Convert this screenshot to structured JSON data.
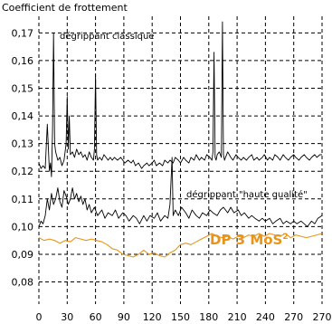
{
  "chart_data": {
    "type": "line",
    "ylabel": "Coefficient de frottement",
    "xlabel": "",
    "xlim": [
      0,
      270
    ],
    "ylim": [
      0.072,
      0.176
    ],
    "grid": true,
    "x_ticks": [
      "0",
      "30",
      "60",
      "90",
      "120",
      "150",
      "180",
      "210",
      "240",
      "270",
      "270"
    ],
    "y_ticks": [
      "0,08",
      "0,09",
      "0,10",
      "0,11",
      "0,12",
      "0,13",
      "0,14",
      "0,15",
      "0,16",
      "0,17"
    ],
    "series": [
      {
        "name": "dégrippant classique",
        "color": "#000000",
        "x": [
          0,
          2,
          4,
          6,
          8,
          10,
          11,
          12,
          13,
          14,
          15,
          16,
          18,
          20,
          22,
          24,
          26,
          27,
          28,
          29,
          30,
          32,
          34,
          36,
          38,
          40,
          42,
          44,
          46,
          48,
          50,
          52,
          53,
          54,
          55,
          56,
          58,
          60,
          62,
          64,
          66,
          68,
          70,
          72,
          75,
          78,
          80,
          82,
          85,
          88,
          90,
          92,
          95,
          98,
          100,
          103,
          105,
          108,
          110,
          112,
          115,
          118,
          120,
          123,
          125,
          128,
          130,
          133,
          135,
          138,
          140,
          143,
          145,
          148,
          150,
          153,
          155,
          158,
          160,
          163,
          165,
          166,
          167,
          168,
          169,
          170,
          172,
          174,
          175,
          176,
          177,
          178,
          180,
          183,
          185,
          188,
          190,
          193,
          195,
          198,
          200,
          203,
          205,
          208,
          210,
          213,
          215,
          218,
          220,
          223,
          225,
          228,
          230,
          233,
          235,
          238,
          240,
          243,
          245,
          248,
          250,
          253,
          255,
          258,
          260,
          263,
          265,
          268,
          270
        ],
        "y": [
          0.123,
          0.121,
          0.122,
          0.121,
          0.137,
          0.12,
          0.123,
          0.118,
          0.135,
          0.17,
          0.13,
          0.127,
          0.124,
          0.125,
          0.122,
          0.124,
          0.13,
          0.147,
          0.128,
          0.14,
          0.126,
          0.127,
          0.125,
          0.128,
          0.126,
          0.127,
          0.125,
          0.126,
          0.124,
          0.127,
          0.125,
          0.124,
          0.128,
          0.155,
          0.126,
          0.124,
          0.125,
          0.124,
          0.126,
          0.125,
          0.124,
          0.125,
          0.124,
          0.125,
          0.124,
          0.125,
          0.124,
          0.123,
          0.124,
          0.123,
          0.124,
          0.122,
          0.123,
          0.121,
          0.122,
          0.123,
          0.122,
          0.123,
          0.124,
          0.122,
          0.123,
          0.122,
          0.124,
          0.123,
          0.124,
          0.123,
          0.125,
          0.124,
          0.123,
          0.125,
          0.124,
          0.123,
          0.125,
          0.124,
          0.126,
          0.124,
          0.125,
          0.124,
          0.126,
          0.125,
          0.124,
          0.127,
          0.163,
          0.125,
          0.124,
          0.126,
          0.127,
          0.125,
          0.174,
          0.126,
          0.124,
          0.125,
          0.127,
          0.125,
          0.124,
          0.126,
          0.125,
          0.124,
          0.125,
          0.124,
          0.125,
          0.126,
          0.124,
          0.125,
          0.124,
          0.125,
          0.126,
          0.124,
          0.125,
          0.124,
          0.126,
          0.125,
          0.124,
          0.126,
          0.125,
          0.124,
          0.125,
          0.126,
          0.125,
          0.124,
          0.125,
          0.126,
          0.125,
          0.124,
          0.125,
          0.126,
          0.125,
          0.126,
          0.126
        ]
      },
      {
        "name": "dégrippant \"haute qualité\"",
        "color": "#000000",
        "x": [
          0,
          2,
          4,
          6,
          8,
          10,
          12,
          14,
          16,
          18,
          20,
          22,
          24,
          26,
          28,
          30,
          32,
          34,
          36,
          38,
          40,
          42,
          44,
          46,
          48,
          50,
          53,
          56,
          60,
          63,
          66,
          70,
          73,
          76,
          80,
          83,
          86,
          90,
          93,
          96,
          100,
          103,
          106,
          110,
          113,
          116,
          120,
          123,
          125,
          127,
          128,
          130,
          133,
          136,
          140,
          143,
          146,
          150,
          153,
          156,
          160,
          163,
          166,
          170,
          173,
          176,
          180,
          183,
          186,
          190,
          193,
          196,
          200,
          203,
          206,
          210,
          213,
          216,
          220,
          223,
          226,
          230,
          233,
          236,
          240,
          243,
          246,
          250,
          253,
          256,
          260,
          263,
          266,
          270
        ],
        "y": [
          0.1,
          0.102,
          0.101,
          0.104,
          0.11,
          0.106,
          0.112,
          0.108,
          0.11,
          0.114,
          0.109,
          0.107,
          0.113,
          0.111,
          0.108,
          0.11,
          0.114,
          0.11,
          0.112,
          0.109,
          0.111,
          0.108,
          0.11,
          0.106,
          0.108,
          0.105,
          0.107,
          0.104,
          0.106,
          0.103,
          0.105,
          0.104,
          0.106,
          0.103,
          0.105,
          0.104,
          0.102,
          0.104,
          0.103,
          0.101,
          0.104,
          0.102,
          0.104,
          0.103,
          0.105,
          0.102,
          0.104,
          0.103,
          0.108,
          0.125,
          0.104,
          0.106,
          0.104,
          0.107,
          0.105,
          0.103,
          0.106,
          0.104,
          0.103,
          0.105,
          0.104,
          0.106,
          0.105,
          0.104,
          0.106,
          0.107,
          0.105,
          0.107,
          0.105,
          0.106,
          0.104,
          0.105,
          0.103,
          0.104,
          0.103,
          0.102,
          0.103,
          0.102,
          0.103,
          0.101,
          0.102,
          0.103,
          0.101,
          0.102,
          0.101,
          0.102,
          0.101,
          0.102,
          0.101,
          0.1,
          0.102,
          0.101,
          0.103,
          0.104
        ]
      },
      {
        "name": "DP 3 MoS²",
        "color": "#e8941a",
        "x": [
          0,
          5,
          10,
          15,
          20,
          25,
          30,
          35,
          40,
          45,
          50,
          55,
          60,
          65,
          70,
          75,
          80,
          85,
          90,
          95,
          100,
          105,
          110,
          115,
          120,
          125,
          130,
          135,
          140,
          145,
          150,
          155,
          160,
          165,
          170,
          175,
          180,
          185,
          190,
          195,
          200,
          205,
          210,
          215,
          220,
          225,
          230,
          235,
          240,
          245,
          250,
          255,
          260,
          265,
          270
        ],
        "y": [
          0.096,
          0.095,
          0.0955,
          0.095,
          0.094,
          0.095,
          0.0945,
          0.096,
          0.0955,
          0.095,
          0.0955,
          0.095,
          0.0945,
          0.0935,
          0.092,
          0.0915,
          0.09,
          0.0895,
          0.089,
          0.09,
          0.0915,
          0.09,
          0.0905,
          0.0895,
          0.089,
          0.0905,
          0.0915,
          0.0935,
          0.094,
          0.0935,
          0.0945,
          0.0955,
          0.0965,
          0.0975,
          0.0965,
          0.096,
          0.0965,
          0.0955,
          0.0965,
          0.096,
          0.097,
          0.0965,
          0.0975,
          0.0965,
          0.0975,
          0.097,
          0.0965,
          0.0975,
          0.096,
          0.097,
          0.0965,
          0.096,
          0.0965,
          0.097,
          0.0975
        ]
      }
    ],
    "annotations": {
      "classique": "dégrippant classique",
      "haute": "dégrippant \"haute qualité\"",
      "dp_main": "DP 3 MoS",
      "dp_sup": "2"
    }
  }
}
